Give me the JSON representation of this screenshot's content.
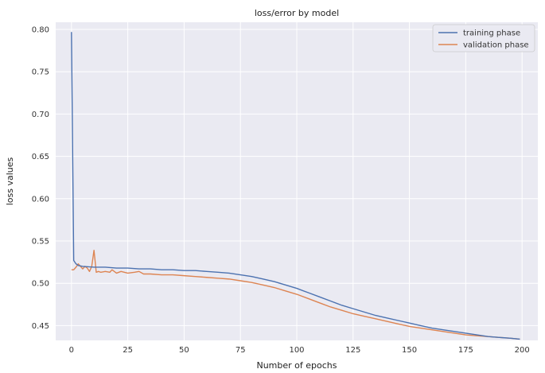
{
  "chart_data": {
    "type": "line",
    "title": "loss/error by model",
    "xlabel": "Number of epochs",
    "ylabel": "loss values",
    "xlim": [
      -7,
      207
    ],
    "ylim": [
      0.4325,
      0.8085
    ],
    "xticks": [
      0,
      25,
      50,
      75,
      100,
      125,
      150,
      175,
      200
    ],
    "yticks": [
      0.45,
      0.5,
      0.55,
      0.6,
      0.65,
      0.7,
      0.75,
      0.8
    ],
    "grid": true,
    "legend_position": "top-right",
    "series": [
      {
        "name": "training phase",
        "color": "#4c72b0",
        "x": [
          0,
          1,
          2,
          3,
          5,
          10,
          15,
          20,
          25,
          30,
          35,
          40,
          45,
          50,
          55,
          60,
          65,
          70,
          75,
          80,
          85,
          90,
          95,
          100,
          105,
          110,
          115,
          120,
          125,
          130,
          135,
          140,
          145,
          150,
          155,
          160,
          165,
          170,
          175,
          180,
          185,
          190,
          195,
          199
        ],
        "y": [
          0.797,
          0.527,
          0.523,
          0.521,
          0.52,
          0.519,
          0.519,
          0.518,
          0.518,
          0.517,
          0.517,
          0.516,
          0.516,
          0.515,
          0.515,
          0.514,
          0.513,
          0.512,
          0.51,
          0.508,
          0.505,
          0.502,
          0.498,
          0.494,
          0.489,
          0.484,
          0.479,
          0.474,
          0.47,
          0.466,
          0.462,
          0.459,
          0.456,
          0.453,
          0.45,
          0.447,
          0.445,
          0.443,
          0.441,
          0.439,
          0.437,
          0.436,
          0.435,
          0.434
        ]
      },
      {
        "name": "validation phase",
        "color": "#dd8452",
        "x": [
          0,
          1,
          2,
          3,
          4,
          5,
          6,
          7,
          8,
          9,
          10,
          11,
          12,
          13,
          15,
          17,
          18,
          20,
          22,
          25,
          28,
          30,
          32,
          35,
          40,
          45,
          50,
          55,
          60,
          65,
          70,
          75,
          80,
          85,
          90,
          95,
          100,
          105,
          110,
          115,
          120,
          125,
          130,
          135,
          140,
          145,
          150,
          155,
          160,
          165,
          170,
          175,
          180,
          185,
          190,
          195,
          199
        ],
        "y": [
          0.516,
          0.516,
          0.519,
          0.523,
          0.52,
          0.517,
          0.52,
          0.518,
          0.514,
          0.52,
          0.539,
          0.513,
          0.514,
          0.513,
          0.514,
          0.513,
          0.516,
          0.512,
          0.514,
          0.512,
          0.513,
          0.514,
          0.511,
          0.511,
          0.51,
          0.51,
          0.509,
          0.508,
          0.507,
          0.506,
          0.505,
          0.503,
          0.501,
          0.498,
          0.495,
          0.491,
          0.487,
          0.482,
          0.477,
          0.472,
          0.468,
          0.464,
          0.461,
          0.458,
          0.455,
          0.452,
          0.449,
          0.447,
          0.445,
          0.443,
          0.441,
          0.439,
          0.438,
          0.437,
          0.436,
          0.435,
          0.434
        ]
      }
    ]
  }
}
